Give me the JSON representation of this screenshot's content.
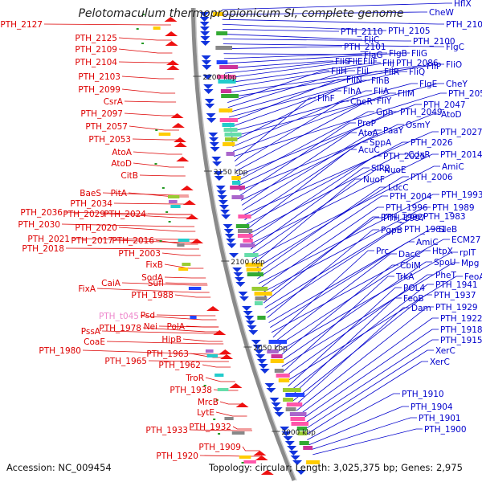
{
  "title": "Pelotomaculum thermopropionicum SI, complete genome",
  "footer": {
    "accession": "Accession: NC_009454",
    "topology": "Topology: circular; Length: 3,025,375 bp; Genes: 2,975"
  },
  "colors": {
    "left": "#dd0000",
    "right": "#0000cc",
    "trna": "#ee88cc",
    "backbone": "#8a8a8a"
  },
  "scale_labels": [
    "2200 kbp",
    "2150 kbp",
    "2100 kbp",
    "2050 kbp",
    "2000 kbp"
  ],
  "left_labels": [
    {
      "t": "PTH_2127",
      "c": "red"
    },
    {
      "t": "PTH_2125",
      "c": "red"
    },
    {
      "t": "PTH_2109",
      "c": "red"
    },
    {
      "t": "PTH_2104",
      "c": "red"
    },
    {
      "t": "PTH_2103",
      "c": "red"
    },
    {
      "t": "PTH_2099",
      "c": "red"
    },
    {
      "t": "CsrA",
      "c": "red"
    },
    {
      "t": "PTH_2097",
      "c": "red"
    },
    {
      "t": "PTH_2057",
      "c": "red"
    },
    {
      "t": "PTH_2053",
      "c": "red"
    },
    {
      "t": "AtoA",
      "c": "red"
    },
    {
      "t": "AtoD",
      "c": "red"
    },
    {
      "t": "CitB",
      "c": "red"
    },
    {
      "t": "BaeS",
      "c": "red"
    },
    {
      "t": "PitA",
      "c": "red"
    },
    {
      "t": "PTH_2034",
      "c": "red"
    },
    {
      "t": "PTH_2036",
      "c": "red"
    },
    {
      "t": "PTH_2029",
      "c": "red"
    },
    {
      "t": "PTH_2024",
      "c": "red"
    },
    {
      "t": "PTH_2030",
      "c": "red"
    },
    {
      "t": "PTH_2020",
      "c": "red"
    },
    {
      "t": "PTH_2021",
      "c": "red"
    },
    {
      "t": "PTH_2017",
      "c": "red"
    },
    {
      "t": "PTH_2016",
      "c": "red"
    },
    {
      "t": "PTH_2018",
      "c": "red"
    },
    {
      "t": "PTH_2003",
      "c": "red"
    },
    {
      "t": "FixB",
      "c": "red"
    },
    {
      "t": "SodA",
      "c": "red"
    },
    {
      "t": "CaiA",
      "c": "red"
    },
    {
      "t": "FixA",
      "c": "red"
    },
    {
      "t": "SufI",
      "c": "red"
    },
    {
      "t": "PTH_1988",
      "c": "red"
    },
    {
      "t": "PTH_t045",
      "c": "pink"
    },
    {
      "t": "Psd",
      "c": "red"
    },
    {
      "t": "PssA",
      "c": "red"
    },
    {
      "t": "PTH_1978",
      "c": "red"
    },
    {
      "t": "Nei",
      "c": "red"
    },
    {
      "t": "CoaE",
      "c": "red"
    },
    {
      "t": "PTH_1980",
      "c": "red"
    },
    {
      "t": "PolA",
      "c": "red"
    },
    {
      "t": "HipB",
      "c": "red"
    },
    {
      "t": "PTH_1963",
      "c": "red"
    },
    {
      "t": "PTH_1965",
      "c": "red"
    },
    {
      "t": "PTH_1962",
      "c": "red"
    },
    {
      "t": "TroR",
      "c": "red"
    },
    {
      "t": "PTH_1938",
      "c": "red"
    },
    {
      "t": "MrcB",
      "c": "red"
    },
    {
      "t": "LytE",
      "c": "red"
    },
    {
      "t": "PTH_1933",
      "c": "red"
    },
    {
      "t": "PTH_1932",
      "c": "red"
    },
    {
      "t": "PTH_1909",
      "c": "red"
    },
    {
      "t": "PTH_1920",
      "c": "red"
    }
  ],
  "right_labels": [
    "HflX",
    "CheW",
    "PTH_2106",
    "PTH_2105",
    "PTH_2110",
    "FliC",
    "PTH_2100",
    "FlgC",
    "PTH_2101",
    "FlaG",
    "FlgB",
    "FliG",
    "FliS",
    "FliE",
    "FliF",
    "FliJ",
    "PTH_2086",
    "FliP",
    "FliO",
    "FliH",
    "FliI",
    "FliR",
    "FliQ",
    "FliN",
    "FlhB",
    "FlgE",
    "CheY",
    "FlhA",
    "FliA",
    "FliM",
    "PTH_2054",
    "FlhF",
    "CheR",
    "FliY",
    "PTH_2047",
    "Gph",
    "PTH_2049",
    "AtoD",
    "ProP",
    "OsmY",
    "AtoA",
    "PaaY",
    "PTH_2027",
    "SppA",
    "PTH_2026",
    "AcuC",
    "CdaR",
    "PTH_2025",
    "PTH_2014",
    "SIR2",
    "NuoE",
    "AmiC",
    "NuoF",
    "PTH_2006",
    "LdcC",
    "PTH_2004",
    "PTH_1993",
    "PTH_1996",
    "PTH_1989",
    "PTH_1997",
    "PTH_1992",
    "PTH_1983",
    "PTH_1981",
    "PgpB",
    "SleB",
    "AmiC",
    "ECM27",
    "Prc",
    "DacC",
    "HtpX",
    "rplT",
    "CbiM",
    "SpoU",
    "Mpg",
    "TrkA",
    "PheT",
    "FeoA",
    "POL4",
    "PTH_1941",
    "FeoB",
    "PTH_1937",
    "Dam",
    "PTH_1929",
    "PTH_1922",
    "PTH_1918",
    "PTH_1915",
    "XerC",
    "XerC",
    "PTH_1910",
    "PTH_1904",
    "PTH_1901",
    "PTH_1900"
  ]
}
